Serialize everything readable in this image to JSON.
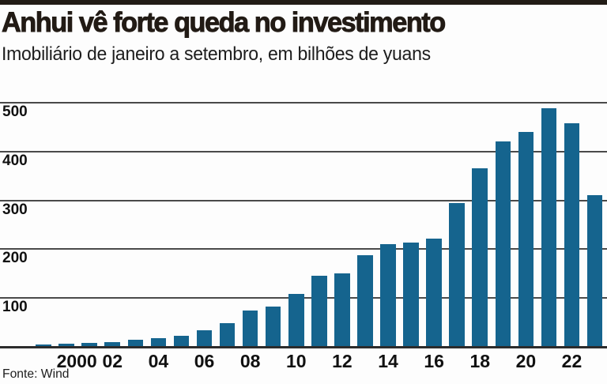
{
  "colors": {
    "background": "#fdfdfd",
    "top_rule": "#221c16",
    "bar": "#15648e",
    "grid_line": "#4a4a4a",
    "baseline": "#2c2c2c",
    "text": "#111111"
  },
  "chart_data": {
    "type": "bar",
    "title": "Anhui vê forte queda no investimento",
    "subtitle": "Imobiliário de janeiro a setembro, em bilhões de yuans",
    "source": "Fonte: Wind",
    "unit": "bilhões de yuans",
    "bar_color": "#15648e",
    "grid": true,
    "legend": "none",
    "ylim": [
      0,
      530
    ],
    "y_ticks": [
      100,
      200,
      300,
      400,
      500
    ],
    "x": [
      1999,
      2000,
      2001,
      2002,
      2003,
      2004,
      2005,
      2006,
      2007,
      2008,
      2009,
      2010,
      2011,
      2012,
      2013,
      2014,
      2015,
      2016,
      2017,
      2018,
      2019,
      2020,
      2021,
      2022,
      2023
    ],
    "values": [
      5,
      6,
      8,
      10,
      14,
      18,
      23,
      34,
      48,
      75,
      82,
      109,
      146,
      151,
      188,
      210,
      214,
      222,
      295,
      365,
      420,
      440,
      488,
      458,
      310
    ],
    "x_ticks": [
      {
        "year": 2000,
        "label": "2000"
      },
      {
        "year": 2002,
        "label": "02"
      },
      {
        "year": 2004,
        "label": "04"
      },
      {
        "year": 2006,
        "label": "06"
      },
      {
        "year": 2008,
        "label": "08"
      },
      {
        "year": 2010,
        "label": "10"
      },
      {
        "year": 2012,
        "label": "12"
      },
      {
        "year": 2014,
        "label": "14"
      },
      {
        "year": 2016,
        "label": "16"
      },
      {
        "year": 2018,
        "label": "18"
      },
      {
        "year": 2020,
        "label": "20"
      },
      {
        "year": 2022,
        "label": "22"
      }
    ]
  }
}
